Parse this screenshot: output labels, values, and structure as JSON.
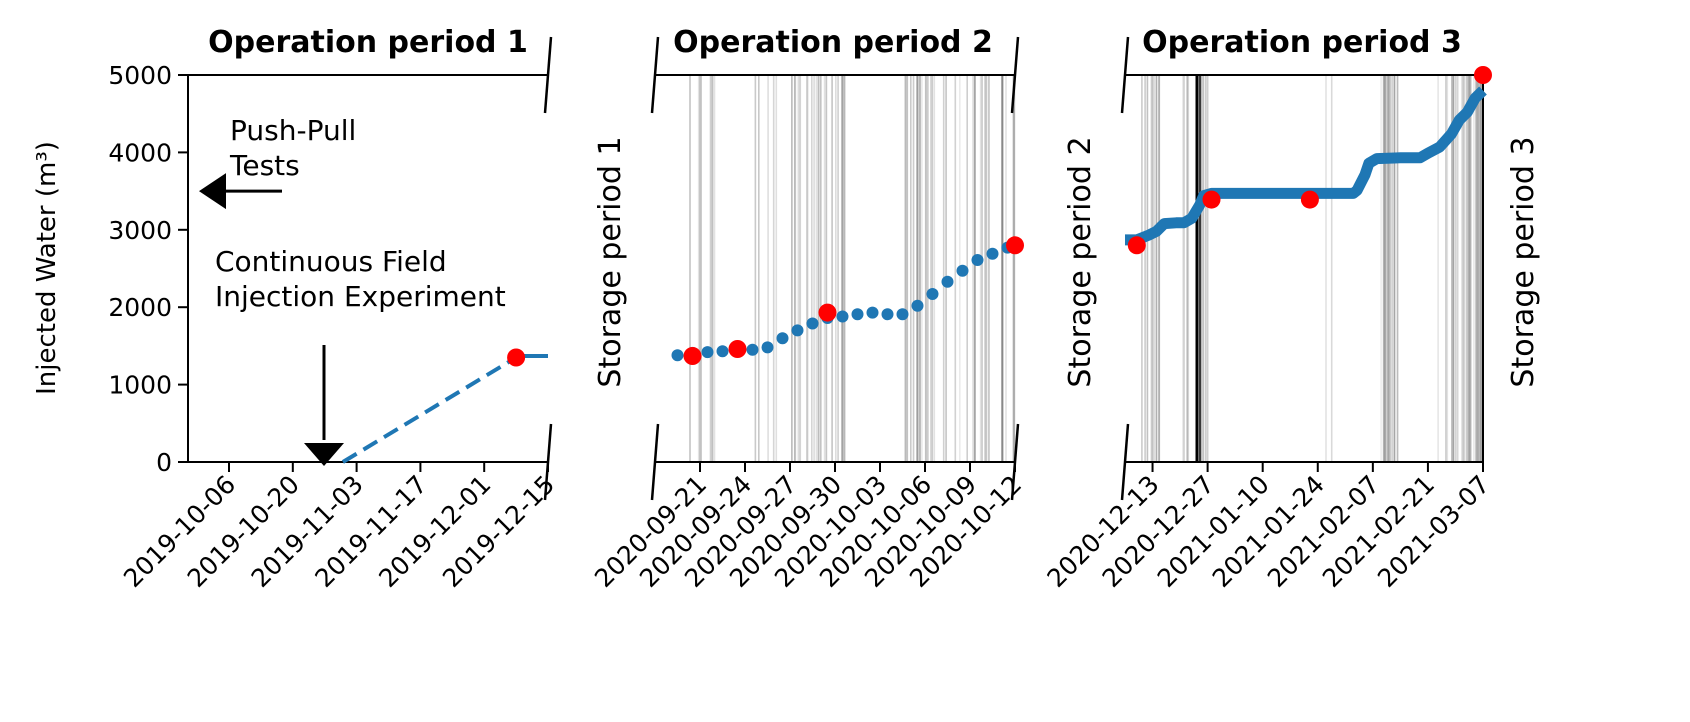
{
  "chart_data": {
    "type": "line",
    "ylabel": "Injected Water (m³)",
    "ylim": [
      0,
      5000
    ],
    "yticks": [
      "0",
      "1000",
      "2000",
      "3000",
      "4000",
      "5000"
    ],
    "colors": {
      "series": "#1f77b4",
      "samples": "#ff0000",
      "events": "#808080"
    },
    "panels": [
      {
        "title": "Operation period 1",
        "xlim": [
          "2019-09-27",
          "2019-12-15"
        ],
        "xticks": [
          "2019-10-06",
          "2019-10-20",
          "2019-11-03",
          "2019-11-17",
          "2019-12-01",
          "2019-12-15"
        ],
        "series": [
          {
            "style": "dashed",
            "x": [
              "2019-10-31",
              "2019-12-08"
            ],
            "y": [
              0,
              1350
            ]
          },
          {
            "style": "solid",
            "x": [
              "2019-12-08",
              "2019-12-15"
            ],
            "y": [
              1370,
              1370
            ]
          }
        ],
        "samples": {
          "x": [
            "2019-12-08"
          ],
          "y": [
            1350
          ]
        },
        "annotations": [
          {
            "text": [
              "Push-Pull",
              " Tests"
            ],
            "arrow": "left",
            "x": "2019-10-01",
            "y": 3500
          },
          {
            "text": [
              "Continuous Field",
              "Injection Experiment"
            ],
            "arrow": "down",
            "x": "2019-10-30",
            "y": 0
          }
        ]
      },
      {
        "title": "Operation period 2",
        "side_label": "Storage period 1",
        "xlim": [
          "2020-09-18",
          "2020-10-12"
        ],
        "xticks": [
          "2020-09-21",
          "2020-09-24",
          "2020-09-27",
          "2020-09-30",
          "2020-10-03",
          "2020-10-06",
          "2020-10-09",
          "2020-10-12"
        ],
        "series": [
          {
            "style": "dots",
            "x": [
              "2020-09-19 12:00",
              "2020-09-20 12:00",
              "2020-09-21 12:00",
              "2020-09-22 12:00",
              "2020-09-23 12:00",
              "2020-09-24 12:00",
              "2020-09-25 12:00",
              "2020-09-26 12:00",
              "2020-09-27 12:00",
              "2020-09-28 12:00",
              "2020-09-29 12:00",
              "2020-09-30 12:00",
              "2020-10-01 12:00",
              "2020-10-02 12:00",
              "2020-10-03 12:00",
              "2020-10-04 12:00",
              "2020-10-05 12:00",
              "2020-10-06 12:00",
              "2020-10-07 12:00",
              "2020-10-08 12:00",
              "2020-10-09 12:00",
              "2020-10-10 12:00",
              "2020-10-11 12:00",
              "2020-10-12 00:00"
            ],
            "y": [
              1380,
              1410,
              1420,
              1430,
              1440,
              1450,
              1480,
              1600,
              1700,
              1790,
              1860,
              1880,
              1910,
              1930,
              1910,
              1910,
              2020,
              2170,
              2330,
              2470,
              2610,
              2690,
              2770,
              2800
            ]
          }
        ],
        "samples": {
          "x": [
            "2020-09-20 12:00",
            "2020-09-23 12:00",
            "2020-09-29 12:00",
            "2020-10-12 00:00"
          ],
          "y": [
            1370,
            1460,
            1930,
            2800
          ]
        }
      },
      {
        "title": "Operation period 3",
        "side_label": "Storage period 2",
        "right_label": "Storage period 3",
        "xlim": [
          "2020-12-06",
          "2021-03-07"
        ],
        "xticks": [
          "2020-12-13",
          "2020-12-27",
          "2021-01-10",
          "2021-01-24",
          "2021-02-07",
          "2021-02-21",
          "2021-03-07"
        ],
        "series": [
          {
            "style": "thick",
            "x": [
              "2020-12-06",
              "2020-12-09",
              "2020-12-12",
              "2020-12-14",
              "2020-12-16",
              "2020-12-19",
              "2020-12-21",
              "2020-12-23",
              "2020-12-25",
              "2020-12-26",
              "2020-12-28",
              "2021-01-15",
              "2021-02-02",
              "2021-02-03",
              "2021-02-05",
              "2021-02-06",
              "2021-02-08",
              "2021-02-14",
              "2021-02-17",
              "2021-02-19",
              "2021-02-21",
              "2021-02-24",
              "2021-02-27",
              "2021-03-01",
              "2021-03-03",
              "2021-03-05",
              "2021-03-07"
            ],
            "y": [
              2870,
              2870,
              2930,
              2980,
              3080,
              3090,
              3090,
              3150,
              3320,
              3440,
              3470,
              3470,
              3470,
              3510,
              3710,
              3860,
              3920,
              3930,
              3930,
              3930,
              3990,
              4070,
              4240,
              4420,
              4520,
              4700,
              4800
            ]
          }
        ],
        "samples": {
          "x": [
            "2020-12-09",
            "2020-12-28",
            "2021-01-22",
            "2021-03-07"
          ],
          "y": [
            2800,
            3390,
            3390,
            5000
          ]
        }
      }
    ]
  }
}
